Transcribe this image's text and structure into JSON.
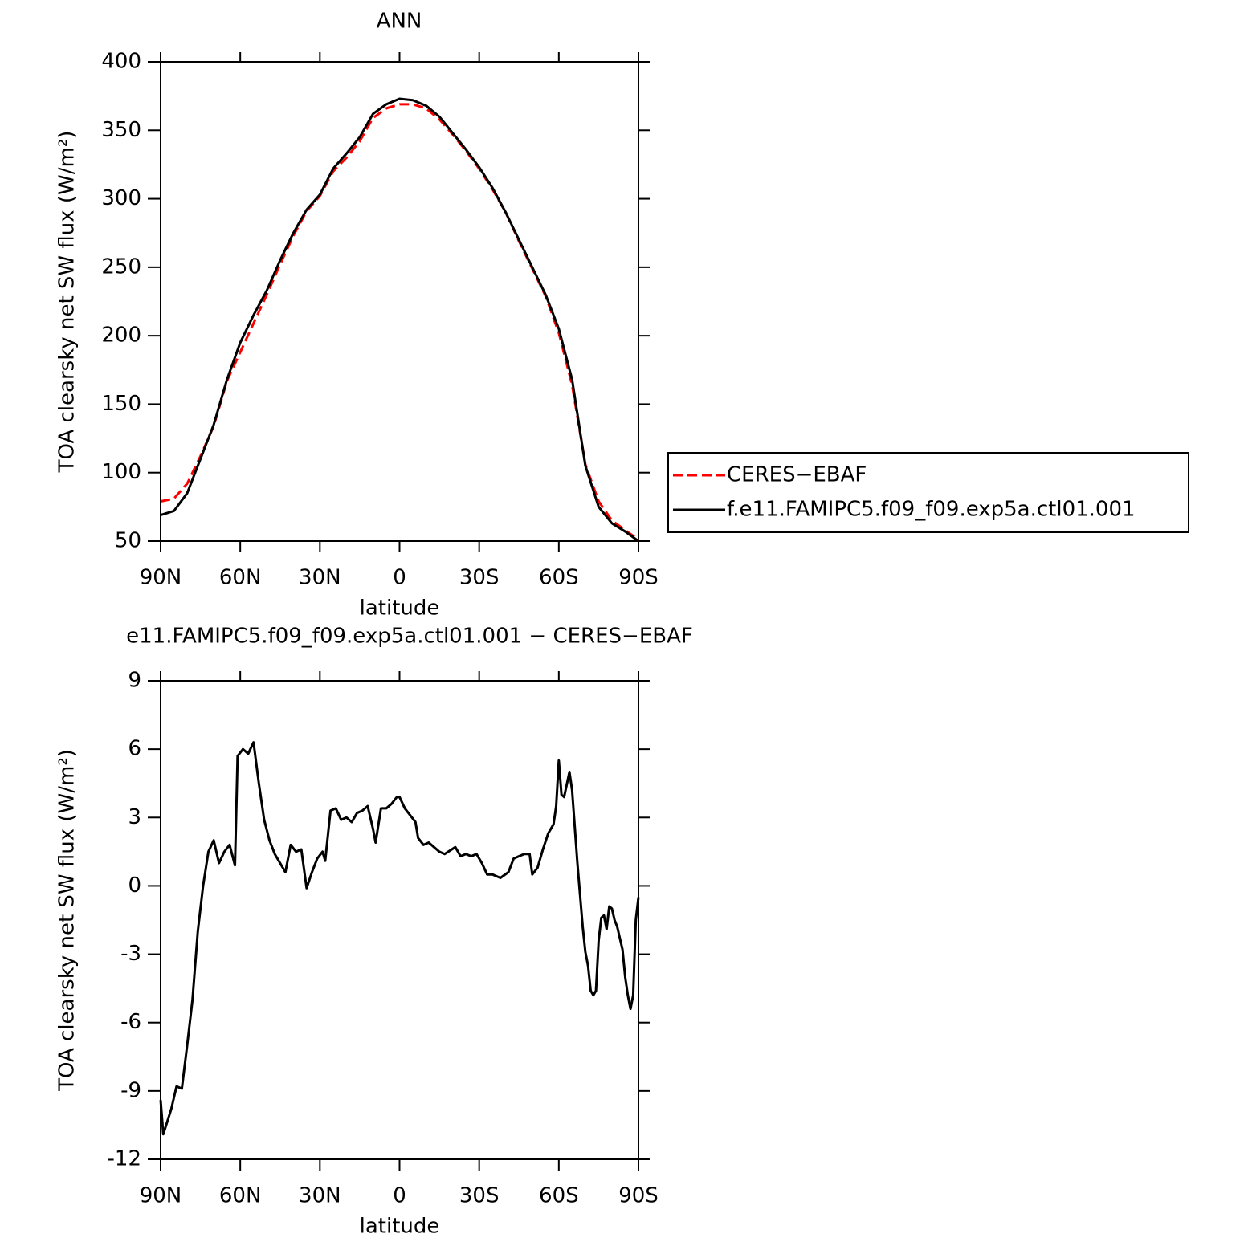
{
  "chart_data": [
    {
      "type": "line",
      "title": "ANN",
      "xlabel": "latitude",
      "ylabel": "TOA clearsky net SW flux (W/m²)",
      "x": [
        90,
        85,
        80,
        75,
        70,
        65,
        60,
        55,
        50,
        45,
        40,
        35,
        30,
        25,
        20,
        15,
        10,
        5,
        0,
        -5,
        -10,
        -15,
        -20,
        -25,
        -30,
        -35,
        -40,
        -45,
        -50,
        -55,
        -60,
        -65,
        -70,
        -75,
        -80,
        -85,
        -90
      ],
      "xlim": [
        90,
        -90
      ],
      "xticks": [
        {
          "value": 90,
          "label": "90N"
        },
        {
          "value": 60,
          "label": "60N"
        },
        {
          "value": 30,
          "label": "30N"
        },
        0,
        {
          "value": -30,
          "label": "30S"
        },
        {
          "value": -60,
          "label": "60S"
        },
        {
          "value": -90,
          "label": "90S"
        }
      ],
      "ylim": [
        50,
        400
      ],
      "yticks": [
        50,
        100,
        150,
        200,
        250,
        300,
        350,
        400
      ],
      "legend": "right",
      "series": [
        {
          "name": "CERES−EBAF",
          "color": "#ff0000",
          "linestyle": "dashed",
          "values": [
            79,
            81,
            92,
            112,
            134,
            167,
            188,
            209,
            230,
            252,
            273,
            291,
            302,
            320,
            330,
            342,
            359,
            366,
            369,
            369,
            366,
            358,
            347,
            335,
            322,
            307,
            290,
            269,
            249,
            229,
            202,
            164,
            106,
            79,
            65,
            58,
            51
          ]
        },
        {
          "name": "f.e11.FAMIPC5.f09_f09.exp5a.ctl01.001",
          "color": "#000000",
          "linestyle": "solid",
          "values": [
            69,
            72,
            85,
            110,
            135,
            168,
            195,
            215,
            233,
            255,
            275,
            292,
            303,
            322,
            333,
            345,
            362,
            369,
            373,
            372,
            368,
            360,
            348,
            336,
            323,
            308,
            290,
            270,
            250,
            230,
            205,
            168,
            105,
            75,
            63,
            57,
            50
          ]
        }
      ]
    },
    {
      "type": "line",
      "title": "e11.FAMIPC5.f09_f09.exp5a.ctl01.001 − CERES−EBAF",
      "xlabel": "latitude",
      "ylabel": "TOA clearsky net SW flux (W/m²)",
      "x": [
        90,
        89,
        86,
        84,
        82,
        80,
        78,
        76,
        74,
        72,
        70,
        68,
        66,
        64,
        62,
        61,
        59,
        57,
        55,
        53,
        51,
        49,
        47,
        45,
        43,
        41,
        39,
        37,
        35,
        33,
        31,
        29,
        28,
        26,
        24,
        22,
        20,
        18,
        16,
        14,
        12,
        10,
        9,
        7,
        5,
        3,
        1,
        0,
        -2,
        -4,
        -6,
        -7,
        -9,
        -11,
        -13,
        -15,
        -17,
        -21,
        -23,
        -25,
        -27,
        -29,
        -31,
        -33,
        -35,
        -38,
        -41,
        -43,
        -45,
        -47,
        -49,
        -50,
        -52,
        -54,
        -56,
        -58,
        -59,
        -60,
        -61,
        -62,
        -64,
        -65,
        -67,
        -69,
        -70,
        -71,
        -72,
        -73,
        -74,
        -75,
        -76,
        -77,
        -78,
        -79,
        -80,
        -81,
        -82,
        -83,
        -84,
        -85,
        -86,
        -87,
        -88,
        -89,
        -90
      ],
      "xlim": [
        90,
        -90
      ],
      "xticks": [
        {
          "value": 90,
          "label": "90N"
        },
        {
          "value": 60,
          "label": "60N"
        },
        {
          "value": 30,
          "label": "30N"
        },
        0,
        {
          "value": -30,
          "label": "30S"
        },
        {
          "value": -60,
          "label": "60S"
        },
        {
          "value": -90,
          "label": "90S"
        }
      ],
      "ylim": [
        -12,
        9
      ],
      "yticks": [
        -12,
        -9,
        -6,
        -3,
        0,
        3,
        6,
        9
      ],
      "series": [
        {
          "color": "#000000",
          "linestyle": "solid",
          "values": [
            -9.4,
            -10.9,
            -9.8,
            -8.8,
            -8.9,
            -7.0,
            -5.0,
            -2.0,
            0,
            1.5,
            2.0,
            1.0,
            1.5,
            1.8,
            0.9,
            5.7,
            6.0,
            5.8,
            6.3,
            4.5,
            2.9,
            2.0,
            1.4,
            1.0,
            0.6,
            1.8,
            1.5,
            1.6,
            -0.1,
            0.6,
            1.2,
            1.5,
            1.1,
            3.3,
            3.4,
            2.9,
            3.0,
            2.8,
            3.2,
            3.3,
            3.5,
            2.5,
            1.9,
            3.4,
            3.4,
            3.6,
            3.9,
            3.9,
            3.4,
            3.1,
            2.8,
            2.1,
            1.8,
            1.9,
            1.7,
            1.5,
            1.4,
            1.7,
            1.3,
            1.4,
            1.3,
            1.4,
            1.0,
            0.5,
            0.5,
            0.35,
            0.6,
            1.2,
            1.3,
            1.4,
            1.4,
            0.5,
            0.8,
            1.6,
            2.3,
            2.7,
            3.5,
            5.5,
            4.0,
            3.9,
            5.0,
            4.2,
            1.0,
            -1.8,
            -2.9,
            -3.5,
            -4.6,
            -4.8,
            -4.6,
            -2.4,
            -1.4,
            -1.3,
            -1.9,
            -0.9,
            -1.0,
            -1.5,
            -1.8,
            -2.3,
            -2.8,
            -4.0,
            -4.8,
            -5.4,
            -4.8,
            -1.5,
            -0.5
          ]
        }
      ]
    }
  ]
}
